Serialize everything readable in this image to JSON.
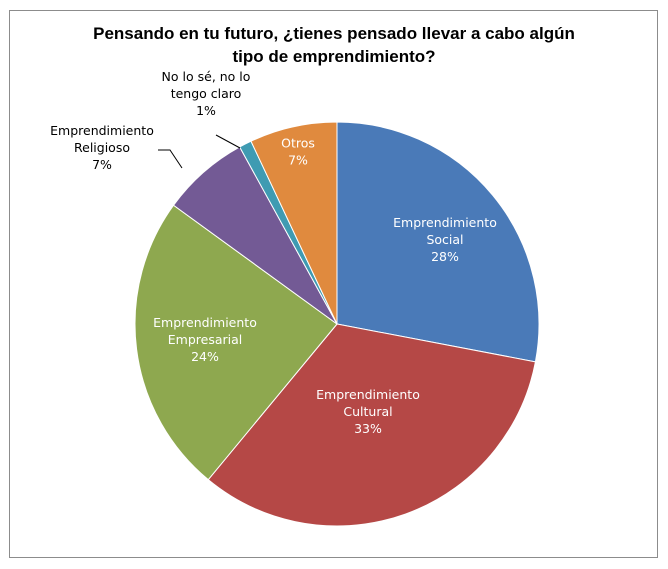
{
  "chart_data": {
    "type": "pie",
    "title_lines": [
      "Pensando en tu futuro, ¿tienes pensado llevar a cabo algún",
      "tipo de emprendimiento?"
    ],
    "slices": [
      {
        "label_lines": [
          "Emprendimiento",
          "Social"
        ],
        "percent_text": "28%",
        "value": 28,
        "color": "#4a7ab8",
        "label_color": "#ffffff"
      },
      {
        "label_lines": [
          "Emprendimiento",
          "Cultural"
        ],
        "percent_text": "33%",
        "value": 33,
        "color": "#b54846",
        "label_color": "#ffffff"
      },
      {
        "label_lines": [
          "Emprendimiento",
          "Empresarial"
        ],
        "percent_text": "24%",
        "value": 24,
        "color": "#8ea84f",
        "label_color": "#ffffff"
      },
      {
        "label_lines": [
          "Emprendimiento",
          "Religioso"
        ],
        "percent_text": "7%",
        "value": 7,
        "color": "#735a95",
        "label_color": "#000000"
      },
      {
        "label_lines": [
          "No lo sé, no lo",
          "tengo claro"
        ],
        "percent_text": "1%",
        "value": 1,
        "color": "#3f9bb2",
        "label_color": "#000000"
      },
      {
        "label_lines": [
          "Otros"
        ],
        "percent_text": "7%",
        "value": 7,
        "color": "#e08a3e",
        "label_color": "#ffffff"
      }
    ]
  }
}
